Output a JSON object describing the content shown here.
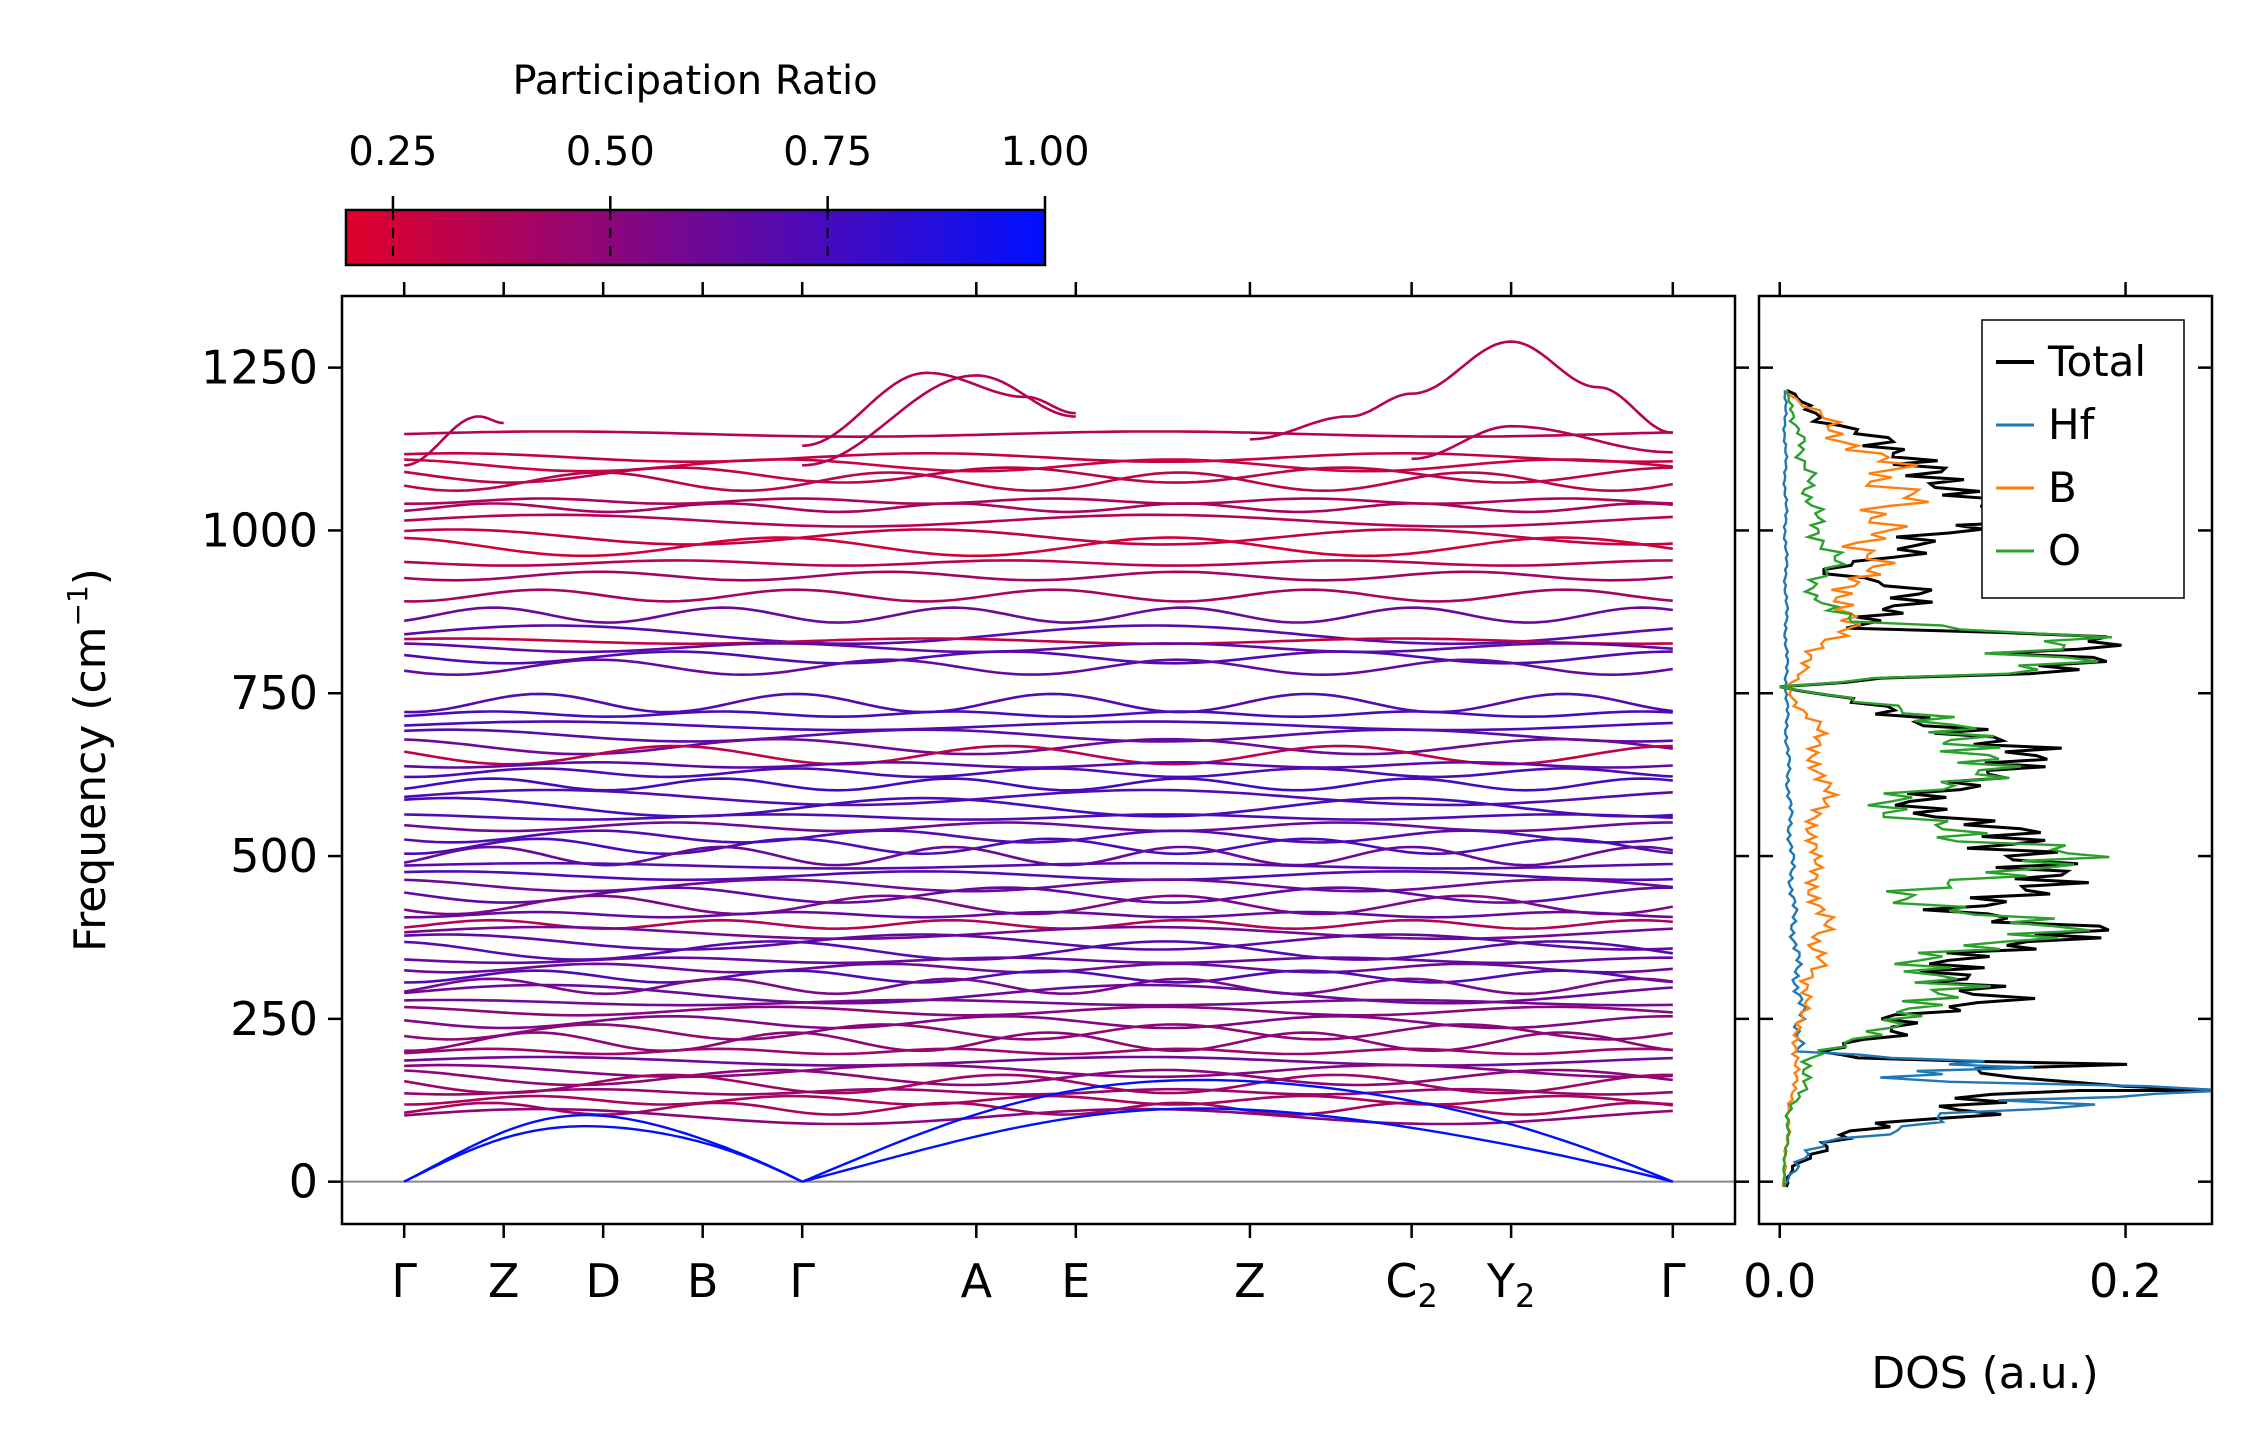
{
  "colors": {
    "low": "#e0002a",
    "high": "#0010ff",
    "total": "#000000",
    "hf": "#1f77b4",
    "b": "#ff7f0e",
    "o": "#2ca02c",
    "zero_line": "#888888"
  },
  "chart_data": [
    {
      "type": "line",
      "name": "phonon band structure",
      "ylabel_main": "Frequency (cm",
      "ylabel_sup": "−1",
      "ylabel_close": ")",
      "ylim": [
        -65,
        1360
      ],
      "yticks": [
        0,
        250,
        500,
        750,
        1000,
        1250
      ],
      "xticks": [
        {
          "label": "Γ",
          "sub": "",
          "pos": 0.0
        },
        {
          "label": "Z",
          "sub": "",
          "pos": 0.8
        },
        {
          "label": "D",
          "sub": "",
          "pos": 1.6
        },
        {
          "label": "B",
          "sub": "",
          "pos": 2.4
        },
        {
          "label": "Γ",
          "sub": "",
          "pos": 3.2
        },
        {
          "label": "A",
          "sub": "",
          "pos": 4.6
        },
        {
          "label": "E",
          "sub": "",
          "pos": 5.4
        },
        {
          "label": "Z",
          "sub": "",
          "pos": 6.8
        },
        {
          "label": "C",
          "sub": "2",
          "pos": 8.1
        },
        {
          "label": "Y",
          "sub": "2",
          "pos": 8.9
        },
        {
          "label": "Γ",
          "sub": "",
          "pos": 10.2
        }
      ],
      "xlim": [
        -0.5,
        10.7
      ],
      "flat_bands": {
        "frequencies": [
          1148,
          1112,
          1100,
          1085,
          1075,
          1045,
          1035,
          1015,
          990,
          975,
          950,
          930,
          900,
          870,
          840,
          830,
          820,
          805,
          790,
          735,
          718,
          700,
          685,
          668,
          655,
          640,
          628,
          610,
          590,
          575,
          560,
          545,
          530,
          515,
          500,
          485,
          470,
          455,
          440,
          425,
          410,
          395,
          382,
          368,
          355,
          340,
          328,
          315,
          300,
          288,
          275,
          262,
          245,
          230,
          215,
          200,
          185,
          170,
          160,
          150,
          138,
          125,
          112,
          100
        ],
        "participation": [
          0.35,
          0.3,
          0.28,
          0.32,
          0.33,
          0.38,
          0.4,
          0.36,
          0.3,
          0.25,
          0.34,
          0.42,
          0.4,
          0.62,
          0.68,
          0.3,
          0.66,
          0.72,
          0.64,
          0.7,
          0.74,
          0.72,
          0.68,
          0.6,
          0.32,
          0.66,
          0.72,
          0.76,
          0.7,
          0.75,
          0.72,
          0.6,
          0.7,
          0.74,
          0.62,
          0.68,
          0.72,
          0.6,
          0.66,
          0.55,
          0.64,
          0.35,
          0.58,
          0.66,
          0.7,
          0.64,
          0.6,
          0.72,
          0.56,
          0.62,
          0.58,
          0.5,
          0.54,
          0.48,
          0.5,
          0.44,
          0.6,
          0.52,
          0.5,
          0.42,
          0.46,
          0.38,
          0.4,
          0.5
        ]
      },
      "acoustic_endpoints": {
        "gamma_positions": [
          0.0,
          3.2,
          10.2
        ],
        "peak_freq": [
          100,
          90,
          110,
          165,
          180,
          190
        ]
      },
      "top_humps": [
        {
          "x": [
            0.0,
            0.6,
            0.8
          ],
          "y": [
            1100,
            1175,
            1165
          ]
        },
        {
          "x": [
            3.2,
            4.2,
            5.0,
            5.4
          ],
          "y": [
            1130,
            1242,
            1205,
            1180
          ]
        },
        {
          "x": [
            3.2,
            4.6,
            5.4
          ],
          "y": [
            1100,
            1238,
            1175
          ]
        },
        {
          "x": [
            6.8,
            7.6,
            8.1
          ],
          "y": [
            1140,
            1175,
            1210
          ]
        },
        {
          "x": [
            8.1,
            8.9,
            9.6,
            10.2
          ],
          "y": [
            1210,
            1290,
            1220,
            1150
          ]
        },
        {
          "x": [
            8.1,
            8.9,
            10.2
          ],
          "y": [
            1110,
            1160,
            1120
          ]
        }
      ]
    },
    {
      "type": "line",
      "name": "density of states",
      "xlabel": "DOS (a.u.)",
      "xlim": [
        -0.012,
        0.25
      ],
      "xticks": [
        0.0,
        0.2
      ],
      "xtick_labels": [
        "0.0",
        "0.2"
      ],
      "ylim": [
        -65,
        1360
      ],
      "legend_position": "top-right",
      "series": [
        {
          "name": "Total",
          "color_key": "total",
          "points": [
            [
              0.003,
              -8
            ],
            [
              0.01,
              30
            ],
            [
              0.03,
              60
            ],
            [
              0.07,
              90
            ],
            [
              0.11,
              110
            ],
            [
              0.16,
              140
            ],
            [
              0.235,
              140
            ],
            [
              0.12,
              160
            ],
            [
              0.17,
              180
            ],
            [
              0.05,
              190
            ],
            [
              0.03,
              200
            ],
            [
              0.08,
              250
            ],
            [
              0.13,
              300
            ],
            [
              0.11,
              340
            ],
            [
              0.16,
              380
            ],
            [
              0.11,
              430
            ],
            [
              0.17,
              500
            ],
            [
              0.09,
              560
            ],
            [
              0.1,
              620
            ],
            [
              0.14,
              660
            ],
            [
              0.11,
              700
            ],
            [
              0.0,
              760
            ],
            [
              0.13,
              780
            ],
            [
              0.21,
              830
            ],
            [
              0.05,
              850
            ],
            [
              0.09,
              890
            ],
            [
              0.03,
              940
            ],
            [
              0.1,
              990
            ],
            [
              0.13,
              1020
            ],
            [
              0.09,
              1060
            ],
            [
              0.11,
              1090
            ],
            [
              0.06,
              1130
            ],
            [
              0.02,
              1180
            ],
            [
              0.004,
              1215
            ]
          ]
        },
        {
          "name": "Hf",
          "color_key": "hf",
          "points": [
            [
              0.003,
              -8
            ],
            [
              0.01,
              30
            ],
            [
              0.03,
              60
            ],
            [
              0.07,
              85
            ],
            [
              0.12,
              105
            ],
            [
              0.15,
              125
            ],
            [
              0.22,
              140
            ],
            [
              0.08,
              160
            ],
            [
              0.13,
              175
            ],
            [
              0.09,
              185
            ],
            [
              0.01,
              200
            ],
            [
              0.012,
              250
            ],
            [
              0.008,
              400
            ],
            [
              0.004,
              700
            ],
            [
              0.003,
              1215
            ]
          ]
        },
        {
          "name": "B",
          "color_key": "b",
          "points": [
            [
              0.002,
              -8
            ],
            [
              0.006,
              120
            ],
            [
              0.01,
              190
            ],
            [
              0.012,
              260
            ],
            [
              0.02,
              320
            ],
            [
              0.025,
              400
            ],
            [
              0.018,
              500
            ],
            [
              0.025,
              600
            ],
            [
              0.02,
              700
            ],
            [
              0.004,
              760
            ],
            [
              0.035,
              850
            ],
            [
              0.05,
              950
            ],
            [
              0.055,
              1000
            ],
            [
              0.07,
              1050
            ],
            [
              0.06,
              1100
            ],
            [
              0.03,
              1160
            ],
            [
              0.004,
              1215
            ]
          ]
        },
        {
          "name": "O",
          "color_key": "o",
          "points": [
            [
              0.002,
              -8
            ],
            [
              0.005,
              100
            ],
            [
              0.02,
              190
            ],
            [
              0.07,
              260
            ],
            [
              0.12,
              300
            ],
            [
              0.09,
              340
            ],
            [
              0.15,
              380
            ],
            [
              0.08,
              440
            ],
            [
              0.16,
              510
            ],
            [
              0.06,
              560
            ],
            [
              0.1,
              620
            ],
            [
              0.13,
              690
            ],
            [
              0.0,
              760
            ],
            [
              0.12,
              780
            ],
            [
              0.19,
              830
            ],
            [
              0.04,
              860
            ],
            [
              0.02,
              900
            ],
            [
              0.03,
              960
            ],
            [
              0.02,
              1020
            ],
            [
              0.015,
              1100
            ],
            [
              0.008,
              1180
            ],
            [
              0.003,
              1215
            ]
          ]
        }
      ]
    },
    {
      "type": "heatmap",
      "name": "colorbar",
      "title": "Participation Ratio",
      "range": [
        0.196,
        1.0
      ],
      "ticks": [
        0.25,
        0.5,
        0.75,
        1.0
      ],
      "tick_labels": [
        "0.25",
        "0.50",
        "0.75",
        "1.00"
      ]
    }
  ]
}
